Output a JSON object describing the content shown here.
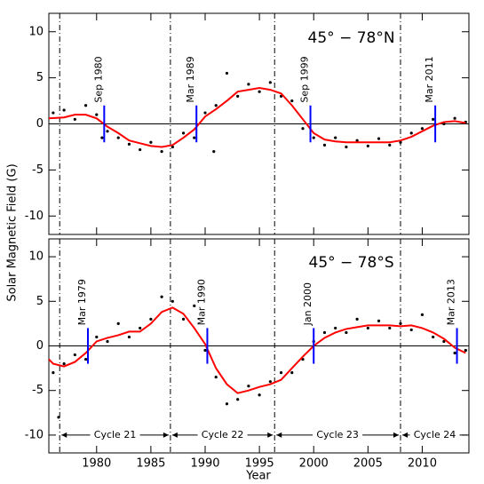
{
  "ylabel": "Solar Magnetic Field (G)",
  "xlabel": "Year",
  "chart_data": [
    {
      "type": "scatter",
      "title": "45° − 78°N",
      "xlim": [
        1975.6,
        2014.3
      ],
      "ylim": [
        -12,
        12
      ],
      "xticks": [
        1980,
        1985,
        1990,
        1995,
        2000,
        2005,
        2010
      ],
      "yticks": [
        -10,
        -5,
        0,
        5,
        10
      ],
      "minima": [
        1976.6,
        1986.8,
        1996.4,
        2008.0
      ],
      "annotations": [
        {
          "x": 1980.7,
          "label": "Sep 1980"
        },
        {
          "x": 1989.2,
          "label": "Mar 1989"
        },
        {
          "x": 1999.7,
          "label": "Sep 1999"
        },
        {
          "x": 2011.2,
          "label": "Mar 2011"
        }
      ],
      "annotation_color": "#0000ff",
      "points": {
        "color": "#000000",
        "x": [
          1976,
          1977,
          1978,
          1979,
          1980,
          1980.5,
          1981,
          1982,
          1983,
          1984,
          1985,
          1986,
          1987,
          1988,
          1989,
          1990,
          1990.8,
          1991,
          1992,
          1993,
          1994,
          1995,
          1996,
          1997,
          1998,
          1999,
          2000,
          2001,
          2002,
          2003,
          2004,
          2005,
          2006,
          2007,
          2008,
          2009,
          2010,
          2011,
          2012,
          2013,
          2014
        ],
        "y": [
          1.2,
          1.5,
          0.5,
          2.0,
          1.0,
          -1.5,
          -0.8,
          -1.5,
          -2.2,
          -2.8,
          -2.0,
          -3.0,
          -2.5,
          -1.0,
          -1.5,
          1.2,
          -3.0,
          2.0,
          5.5,
          3.0,
          4.3,
          3.5,
          4.5,
          3.0,
          2.5,
          -0.5,
          -1.5,
          -2.3,
          -1.5,
          -2.5,
          -1.8,
          -2.4,
          -1.6,
          -2.3,
          -2.0,
          -1.0,
          -0.5,
          0.5,
          0.0,
          0.6,
          0.2
        ]
      },
      "smooth": {
        "color": "#ff0000",
        "x": [
          1975.6,
          1977,
          1978,
          1979,
          1980,
          1981,
          1982,
          1983,
          1984,
          1985,
          1986,
          1987,
          1988,
          1989,
          1990,
          1991,
          1992,
          1993,
          1994,
          1995,
          1996,
          1997,
          1998,
          1999,
          2000,
          2001,
          2002,
          2003,
          2004,
          2005,
          2006,
          2007,
          2008,
          2009,
          2010,
          2011,
          2012,
          2013,
          2014
        ],
        "y": [
          0.6,
          0.7,
          1.0,
          1.0,
          0.6,
          -0.3,
          -1.0,
          -1.8,
          -2.1,
          -2.4,
          -2.5,
          -2.3,
          -1.5,
          -0.6,
          0.8,
          1.6,
          2.5,
          3.5,
          3.7,
          3.9,
          3.7,
          3.3,
          2.0,
          0.5,
          -1.0,
          -1.7,
          -1.9,
          -2.0,
          -2.0,
          -2.0,
          -2.0,
          -2.0,
          -1.8,
          -1.4,
          -0.8,
          -0.2,
          0.2,
          0.3,
          0.1
        ]
      }
    },
    {
      "type": "scatter",
      "title": "45° − 78°S",
      "xlim": [
        1975.6,
        2014.3
      ],
      "ylim": [
        -12,
        12
      ],
      "xticks": [
        1980,
        1985,
        1990,
        1995,
        2000,
        2005,
        2010
      ],
      "yticks": [
        -10,
        -5,
        0,
        5,
        10
      ],
      "minima": [
        1976.6,
        1986.8,
        1996.4,
        2008.0
      ],
      "annotations": [
        {
          "x": 1979.2,
          "label": "Mar 1979"
        },
        {
          "x": 1990.2,
          "label": "Mar 1990"
        },
        {
          "x": 2000.0,
          "label": "Jan 2000"
        },
        {
          "x": 2013.2,
          "label": "Mar 2013"
        }
      ],
      "annotation_color": "#0000ff",
      "cycle_labels": [
        "Cycle 21",
        "Cycle 22",
        "Cycle 23",
        "Cycle 24"
      ],
      "cycle_y": -10,
      "points": {
        "color": "#000000",
        "x": [
          1976,
          1976.5,
          1977,
          1978,
          1979,
          1980,
          1981,
          1982,
          1983,
          1984,
          1985,
          1986,
          1987,
          1988,
          1989,
          1990,
          1991,
          1992,
          1993,
          1994,
          1995,
          1996,
          1997,
          1998,
          1999,
          2000,
          2001,
          2002,
          2003,
          2004,
          2005,
          2006,
          2007,
          2008,
          2009,
          2010,
          2011,
          2012,
          2013,
          2014
        ],
        "y": [
          -3.0,
          -8.0,
          -2.0,
          -1.0,
          -1.5,
          1.0,
          0.5,
          2.5,
          1.0,
          2.0,
          3.0,
          5.5,
          5.0,
          3.0,
          4.5,
          -0.5,
          -3.5,
          -6.5,
          -6.0,
          -4.5,
          -5.5,
          -4.0,
          -3.0,
          -3.0,
          -1.5,
          0.5,
          1.5,
          2.0,
          1.5,
          3.0,
          2.0,
          2.8,
          2.0,
          2.5,
          1.8,
          3.5,
          1.0,
          0.5,
          -0.8,
          -0.5
        ]
      },
      "smooth": {
        "color": "#ff0000",
        "x": [
          1975.6,
          1976,
          1977,
          1978,
          1979,
          1980,
          1981,
          1982,
          1983,
          1984,
          1985,
          1986,
          1987,
          1988,
          1989,
          1990,
          1991,
          1992,
          1993,
          1994,
          1995,
          1996,
          1997,
          1998,
          1999,
          2000,
          2001,
          2002,
          2003,
          2004,
          2005,
          2006,
          2007,
          2008,
          2009,
          2010,
          2011,
          2012,
          2013,
          2014
        ],
        "y": [
          -1.5,
          -2.0,
          -2.3,
          -1.8,
          -0.8,
          0.5,
          0.9,
          1.2,
          1.6,
          1.6,
          2.5,
          3.8,
          4.3,
          3.6,
          2.0,
          0.2,
          -2.5,
          -4.3,
          -5.3,
          -5.0,
          -4.6,
          -4.3,
          -3.8,
          -2.5,
          -1.2,
          0.0,
          0.9,
          1.5,
          1.9,
          2.1,
          2.3,
          2.3,
          2.3,
          2.2,
          2.3,
          2.0,
          1.5,
          0.8,
          -0.2,
          -0.8
        ]
      }
    }
  ]
}
